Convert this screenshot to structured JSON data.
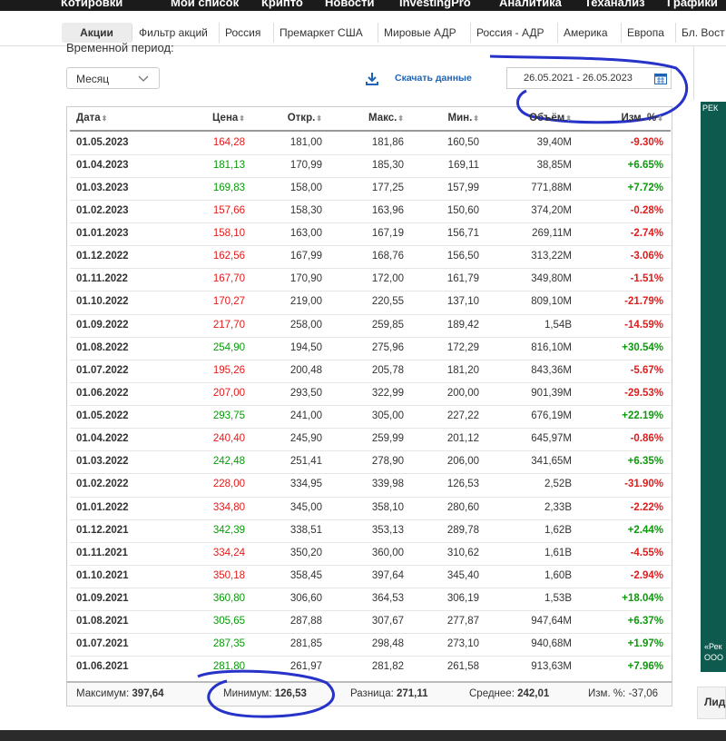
{
  "nav": {
    "items": [
      "Котировки",
      "Мой список",
      "Крипто",
      "Новости",
      "InvestingPro",
      "Аналитика",
      "Теханализ",
      "Графики"
    ]
  },
  "tabs": {
    "items": [
      "Акции",
      "Фильтр акций",
      "Россия",
      "Премаркет США",
      "Мировые АДР",
      "Россия - АДР",
      "Америка",
      "Европа",
      "Бл. Вост"
    ]
  },
  "filters": {
    "period_label": "Временной период:",
    "period": "Месяц",
    "download": "Скачать данные",
    "date_range": "26.05.2021 - 26.05.2023"
  },
  "table": {
    "columns": [
      "Дата",
      "Цена",
      "Откр.",
      "Макс.",
      "Мин.",
      "Объём",
      "Изм. %"
    ],
    "rows": [
      [
        "01.05.2023",
        "164,28",
        "181,00",
        "181,86",
        "160,50",
        "39,40M",
        "-9.30%"
      ],
      [
        "01.04.2023",
        "181,13",
        "170,99",
        "185,30",
        "169,11",
        "38,85M",
        "+6.65%"
      ],
      [
        "01.03.2023",
        "169,83",
        "158,00",
        "177,25",
        "157,99",
        "771,88M",
        "+7.72%"
      ],
      [
        "01.02.2023",
        "157,66",
        "158,30",
        "163,96",
        "150,60",
        "374,20M",
        "-0.28%"
      ],
      [
        "01.01.2023",
        "158,10",
        "163,00",
        "167,19",
        "156,71",
        "269,11M",
        "-2.74%"
      ],
      [
        "01.12.2022",
        "162,56",
        "167,99",
        "168,76",
        "156,50",
        "313,22M",
        "-3.06%"
      ],
      [
        "01.11.2022",
        "167,70",
        "170,90",
        "172,00",
        "161,79",
        "349,80M",
        "-1.51%"
      ],
      [
        "01.10.2022",
        "170,27",
        "219,00",
        "220,55",
        "137,10",
        "809,10M",
        "-21.79%"
      ],
      [
        "01.09.2022",
        "217,70",
        "258,00",
        "259,85",
        "189,42",
        "1,54B",
        "-14.59%"
      ],
      [
        "01.08.2022",
        "254,90",
        "194,50",
        "275,96",
        "172,29",
        "816,10M",
        "+30.54%"
      ],
      [
        "01.07.2022",
        "195,26",
        "200,48",
        "205,78",
        "181,20",
        "843,36M",
        "-5.67%"
      ],
      [
        "01.06.2022",
        "207,00",
        "293,50",
        "322,99",
        "200,00",
        "901,39M",
        "-29.53%"
      ],
      [
        "01.05.2022",
        "293,75",
        "241,00",
        "305,00",
        "227,22",
        "676,19M",
        "+22.19%"
      ],
      [
        "01.04.2022",
        "240,40",
        "245,90",
        "259,99",
        "201,12",
        "645,97M",
        "-0.86%"
      ],
      [
        "01.03.2022",
        "242,48",
        "251,41",
        "278,90",
        "206,00",
        "341,65M",
        "+6.35%"
      ],
      [
        "01.02.2022",
        "228,00",
        "334,95",
        "339,98",
        "126,53",
        "2,52B",
        "-31.90%"
      ],
      [
        "01.01.2022",
        "334,80",
        "345,00",
        "358,10",
        "280,60",
        "2,33B",
        "-2.22%"
      ],
      [
        "01.12.2021",
        "342,39",
        "338,51",
        "353,13",
        "289,78",
        "1,62B",
        "+2.44%"
      ],
      [
        "01.11.2021",
        "334,24",
        "350,20",
        "360,00",
        "310,62",
        "1,61B",
        "-4.55%"
      ],
      [
        "01.10.2021",
        "350,18",
        "358,45",
        "397,64",
        "345,40",
        "1,60B",
        "-2.94%"
      ],
      [
        "01.09.2021",
        "360,80",
        "306,60",
        "364,53",
        "306,19",
        "1,53B",
        "+18.04%"
      ],
      [
        "01.08.2021",
        "305,65",
        "287,88",
        "307,67",
        "277,87",
        "947,64M",
        "+6.37%"
      ],
      [
        "01.07.2021",
        "287,35",
        "281,85",
        "298,48",
        "273,10",
        "940,68M",
        "+1.97%"
      ],
      [
        "01.06.2021",
        "281,80",
        "261,97",
        "281,82",
        "261,58",
        "913,63M",
        "+7.96%"
      ]
    ]
  },
  "summary": [
    {
      "label": "Максимум:",
      "value": "397,64"
    },
    {
      "label": "Минимум:",
      "value": "126,53"
    },
    {
      "label": "Разница:",
      "value": "271,11"
    },
    {
      "label": "Среднее:",
      "value": "242,01"
    },
    {
      "label": "Изм. %:",
      "value": "-37,06"
    }
  ],
  "ad": {
    "label": "РЕК",
    "lines": [
      "«Рек",
      "ООО"
    ]
  },
  "sidebar_heading": "Лид"
}
